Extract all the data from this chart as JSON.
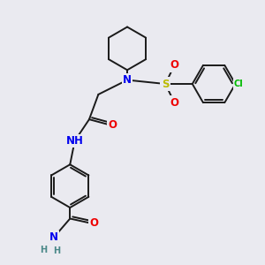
{
  "bg_color": "#eaeaf0",
  "bond_color": "#1a1a1a",
  "bond_width": 1.4,
  "atom_colors": {
    "N": "#0000ee",
    "O": "#ee0000",
    "S": "#bbbb00",
    "Cl": "#00bb00",
    "C": "#1a1a1a",
    "H": "#4a8888"
  },
  "font_size_atom": 8.5,
  "font_size_small": 7.0
}
